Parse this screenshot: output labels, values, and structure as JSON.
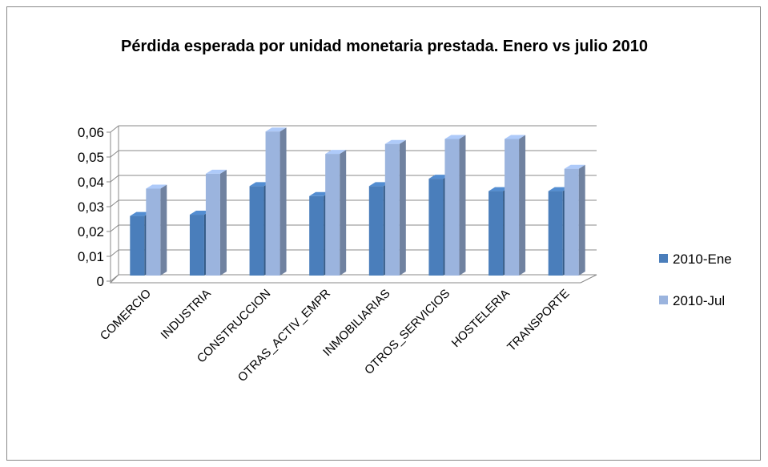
{
  "chart_data": {
    "type": "bar3d",
    "title": "Pérdida esperada por unidad monetaria prestada. Enero vs julio 2010",
    "categories": [
      "COMERCIO",
      "INDUSTRIA",
      "CONSTRUCCION",
      "OTRAS_ACTIV_EMPR",
      "INMOBILIARIAS",
      "OTROS_SERVICIOS",
      "HOSTELERIA",
      "TRANSPORTE"
    ],
    "series": [
      {
        "name": "2010-Ene",
        "color": "#4a7ebb",
        "values": [
          0.024,
          0.0245,
          0.036,
          0.032,
          0.036,
          0.039,
          0.034,
          0.034
        ]
      },
      {
        "name": "2010-Jul",
        "color": "#9bb4de",
        "values": [
          0.035,
          0.041,
          0.058,
          0.049,
          0.053,
          0.055,
          0.055,
          0.043
        ]
      }
    ],
    "ylim": [
      0,
      0.06
    ],
    "yticks": [
      0,
      {
        "value": 0.01,
        "label": "0,01"
      },
      {
        "value": 0.02,
        "label": "0,02"
      },
      {
        "value": 0.03,
        "label": "0,03"
      },
      {
        "value": 0.04,
        "label": "0,04"
      },
      {
        "value": 0.05,
        "label": "0,05"
      },
      {
        "value": 0.06,
        "label": "0,06"
      }
    ],
    "grid": true,
    "legend": "right"
  }
}
